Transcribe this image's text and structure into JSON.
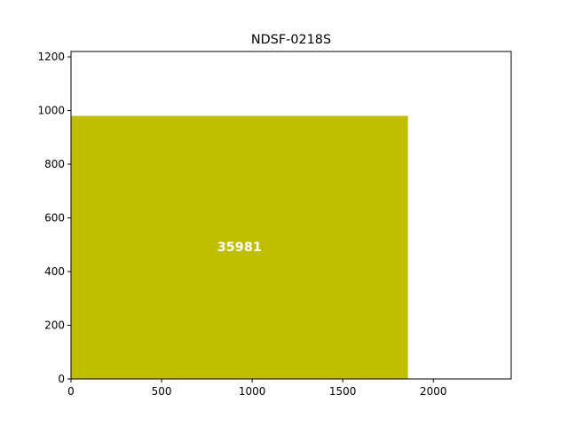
{
  "chart_data": {
    "type": "bar",
    "title": "NDSF-0218S",
    "xlabel": "",
    "ylabel": "",
    "xlim": [
      0,
      2430
    ],
    "ylim": [
      0,
      1220
    ],
    "xticks": [
      0,
      500,
      1000,
      1500,
      2000
    ],
    "yticks": [
      0,
      200,
      400,
      600,
      800,
      1000,
      1200
    ],
    "grid": false,
    "bars": [
      {
        "x0": 0,
        "x1": 1860,
        "height": 980,
        "label": "35981",
        "color": "#bfbf00"
      }
    ],
    "label_color": "#ffffff"
  }
}
